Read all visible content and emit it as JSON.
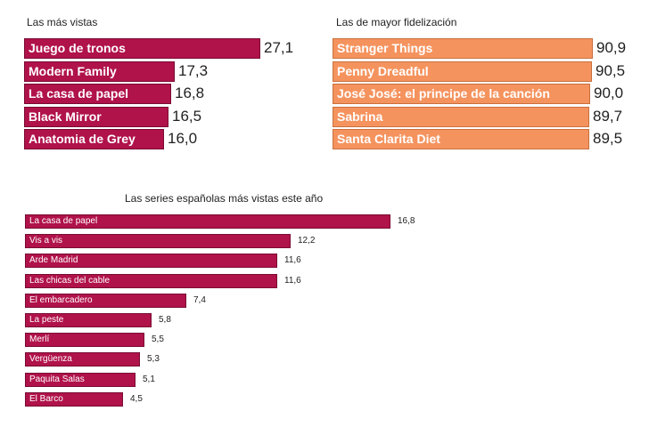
{
  "colors": {
    "maroon": "#b0124a",
    "orange": "#f5935e"
  },
  "chart_data": [
    {
      "type": "bar",
      "orientation": "horizontal",
      "title": "Las más vistas",
      "categories": [
        "Juego de tronos",
        "Modern Family",
        "La casa de papel",
        "Black Mirror",
        "Anatomia de Grey"
      ],
      "values": [
        27.1,
        17.3,
        16.8,
        16.5,
        16.0
      ],
      "value_labels": [
        "27,1",
        "17,3",
        "16,8",
        "16,5",
        "16,0"
      ],
      "xlim": [
        0,
        29.5
      ],
      "color": "#b0124a"
    },
    {
      "type": "bar",
      "orientation": "horizontal",
      "title": "Las de mayor fidelización",
      "categories": [
        "Stranger Things",
        "Penny Dreadful",
        "José José: el principe de la canción",
        "Sabrina",
        "Santa Clarita Diet"
      ],
      "values": [
        90.9,
        90.5,
        90.0,
        89.7,
        89.5
      ],
      "value_labels": [
        "90,9",
        "90,5",
        "90,0",
        "89,7",
        "89,5"
      ],
      "xlim": [
        0,
        90.9
      ],
      "color": "#f5935e"
    },
    {
      "type": "bar",
      "orientation": "horizontal",
      "title": "Las series españolas más vistas este año",
      "categories": [
        "La casa de papel",
        "Vis a vis",
        "Arde Madrid",
        "Las chicas del cable",
        "El embarcadero",
        "La peste",
        "Merlí",
        "Vergüenza",
        "Paquita Salas",
        "El Barco"
      ],
      "values": [
        16.8,
        12.2,
        11.6,
        11.6,
        7.4,
        5.8,
        5.5,
        5.3,
        5.1,
        4.5
      ],
      "value_labels": [
        "16,8",
        "12,2",
        "11,6",
        "11,6",
        "7,4",
        "5,8",
        "5,5",
        "5,3",
        "5,1",
        "4,5"
      ],
      "xlim": [
        0,
        16.8
      ],
      "color": "#b0124a"
    }
  ]
}
